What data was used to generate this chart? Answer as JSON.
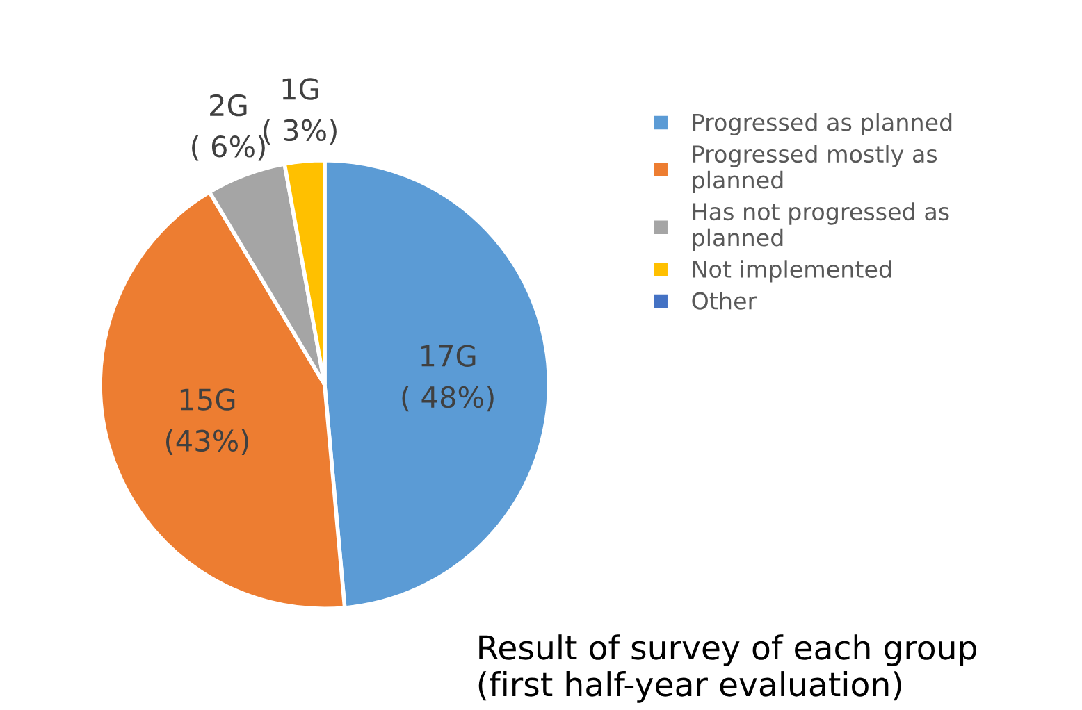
{
  "chart_data": {
    "type": "pie",
    "categories": [
      "Progressed as planned",
      "Progressed mostly as planned",
      "Has not progressed as planned",
      "Not implemented",
      "Other"
    ],
    "values": [
      17,
      15,
      2,
      1,
      0
    ],
    "value_labels": [
      "17G\n( 48%)",
      "15G\n(43%)",
      "2G\n( 6%)",
      "1G\n( 3%)",
      null
    ],
    "colors": [
      "#5b9bd5",
      "#ed7d31",
      "#a5a5a5",
      "#ffc000",
      "#4472c4"
    ],
    "legend": "right",
    "annotations": [
      "Result of survey of each group\n(first half-year evaluation)"
    ]
  }
}
